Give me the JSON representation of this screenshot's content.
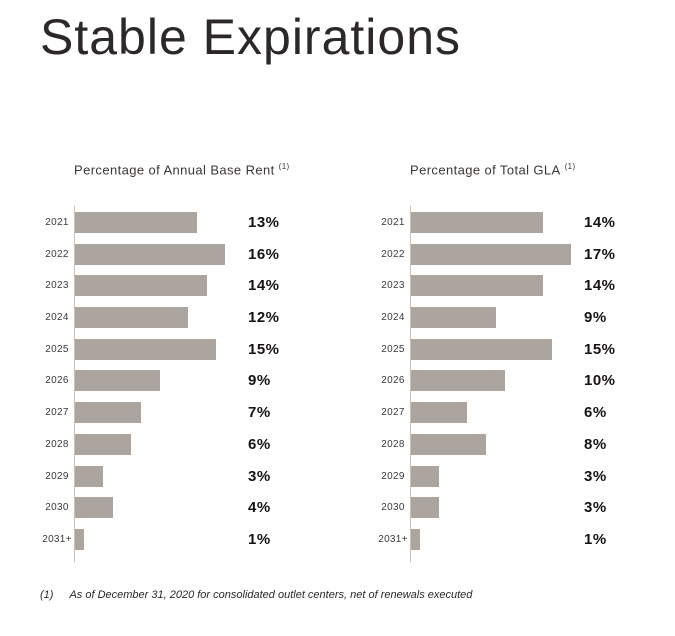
{
  "page": {
    "title": "Stable Expirations",
    "footnote": {
      "marker": "(1)",
      "text": "As of December 31, 2020 for consolidated outlet centers, net of renewals executed"
    }
  },
  "colors": {
    "bar": "#aca49e",
    "axis_line": "#c6c2bf",
    "title_text": "#2c2829",
    "value_text": "#171314"
  },
  "chart_data": [
    {
      "type": "bar",
      "orientation": "horizontal",
      "title": "Percentage of Annual Base Rent",
      "title_superscript": "(1)",
      "categories": [
        "2021",
        "2022",
        "2023",
        "2024",
        "2025",
        "2026",
        "2027",
        "2028",
        "2029",
        "2030",
        "2031+"
      ],
      "values": [
        13,
        16,
        14,
        12,
        15,
        9,
        7,
        6,
        3,
        4,
        1
      ],
      "value_labels": [
        "13%",
        "16%",
        "14%",
        "12%",
        "15%",
        "9%",
        "7%",
        "6%",
        "3%",
        "4%",
        "1%"
      ],
      "xlim": [
        0,
        18
      ],
      "grid": false,
      "legend": "none",
      "value_label_position": "right-of-bars"
    },
    {
      "type": "bar",
      "orientation": "horizontal",
      "title": "Percentage of Total GLA",
      "title_superscript": "(1)",
      "categories": [
        "2021",
        "2022",
        "2023",
        "2024",
        "2025",
        "2026",
        "2027",
        "2028",
        "2029",
        "2030",
        "2031+"
      ],
      "values": [
        14,
        17,
        14,
        9,
        15,
        10,
        6,
        8,
        3,
        3,
        1
      ],
      "value_labels": [
        "14%",
        "17%",
        "14%",
        "9%",
        "15%",
        "10%",
        "6%",
        "8%",
        "3%",
        "3%",
        "1%"
      ],
      "xlim": [
        0,
        18
      ],
      "grid": false,
      "legend": "none",
      "value_label_position": "right-of-bars"
    }
  ]
}
